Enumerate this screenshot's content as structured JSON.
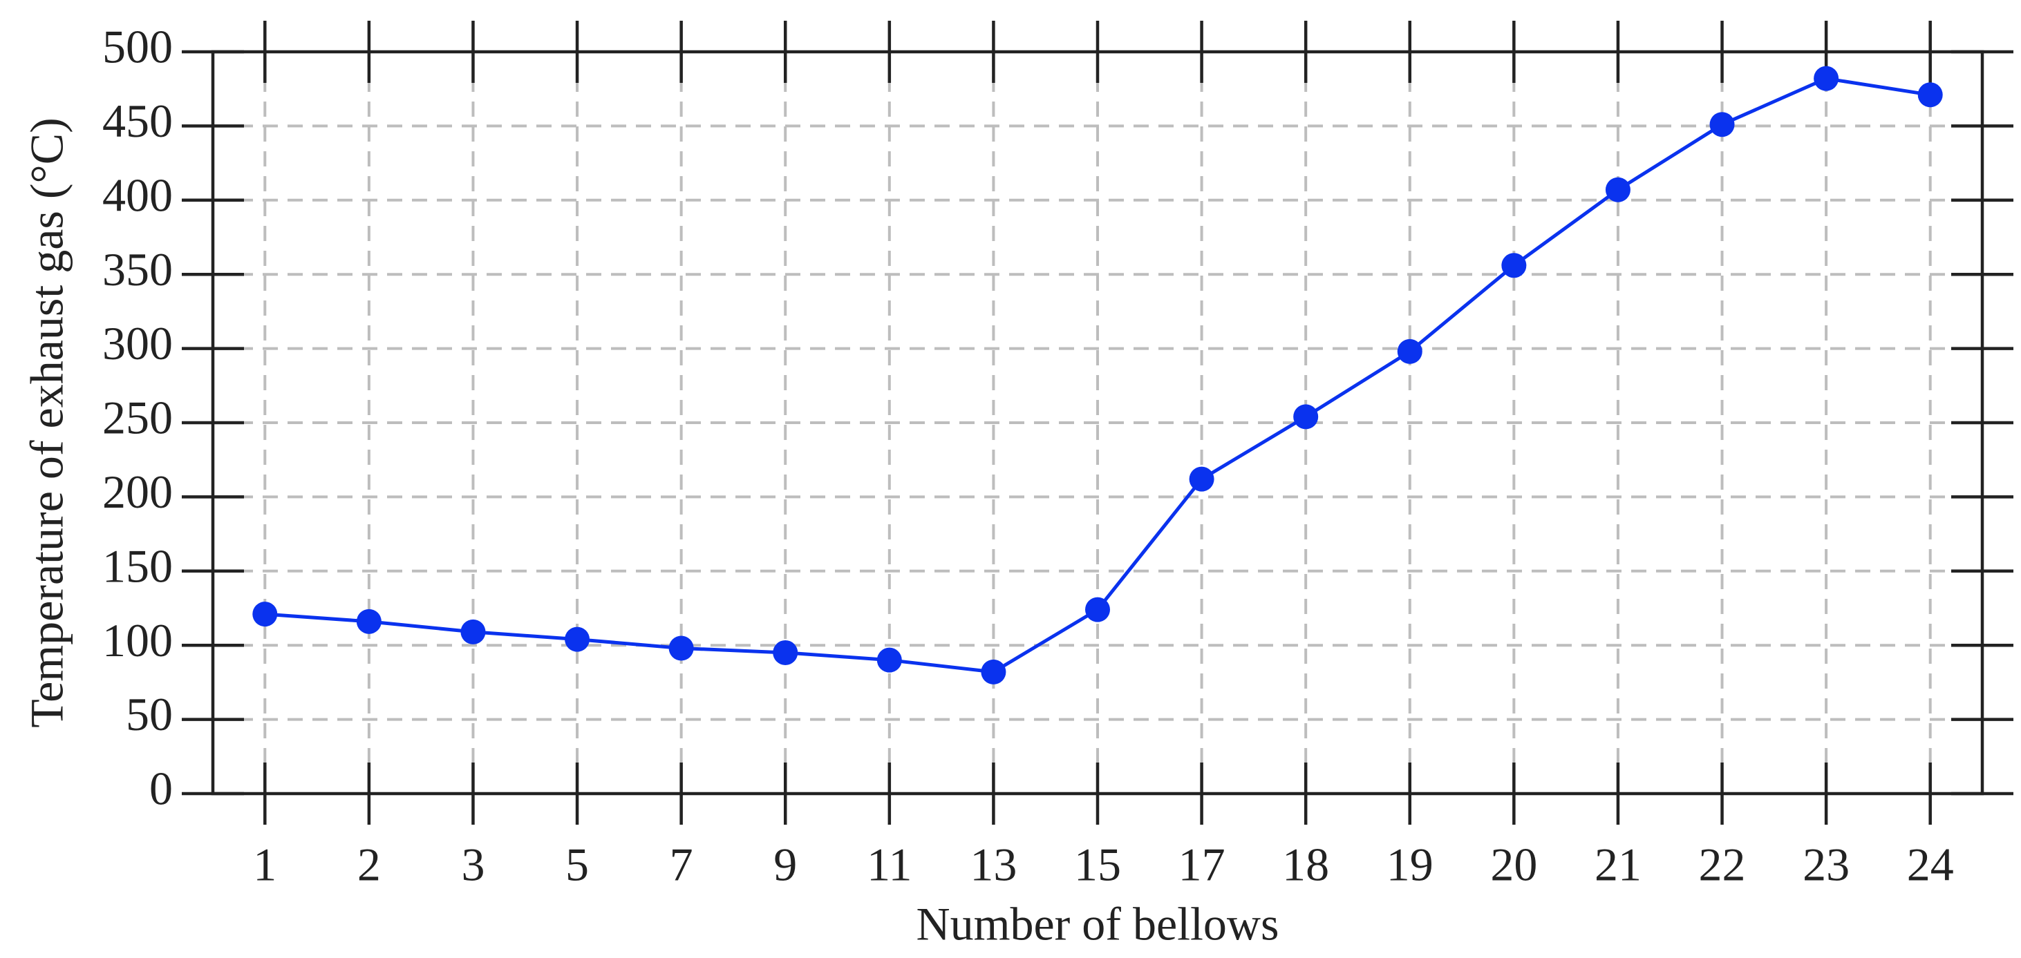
{
  "chart_data": {
    "type": "line",
    "x_label": "Number of bellows",
    "y_label": "Temperature of exhaust gas (°C)",
    "categories": [
      "1",
      "2",
      "3",
      "5",
      "7",
      "9",
      "11",
      "13",
      "15",
      "17",
      "18",
      "19",
      "20",
      "21",
      "22",
      "23",
      "24"
    ],
    "values": [
      121,
      116,
      109,
      104,
      98,
      95,
      90,
      82,
      124,
      212,
      254,
      298,
      356,
      407,
      451,
      482,
      471
    ],
    "color": "#0a32ee",
    "ylim": [
      0,
      500
    ],
    "yticks": [
      0,
      50,
      100,
      150,
      200,
      250,
      300,
      350,
      400,
      450,
      500
    ],
    "grid": true
  }
}
